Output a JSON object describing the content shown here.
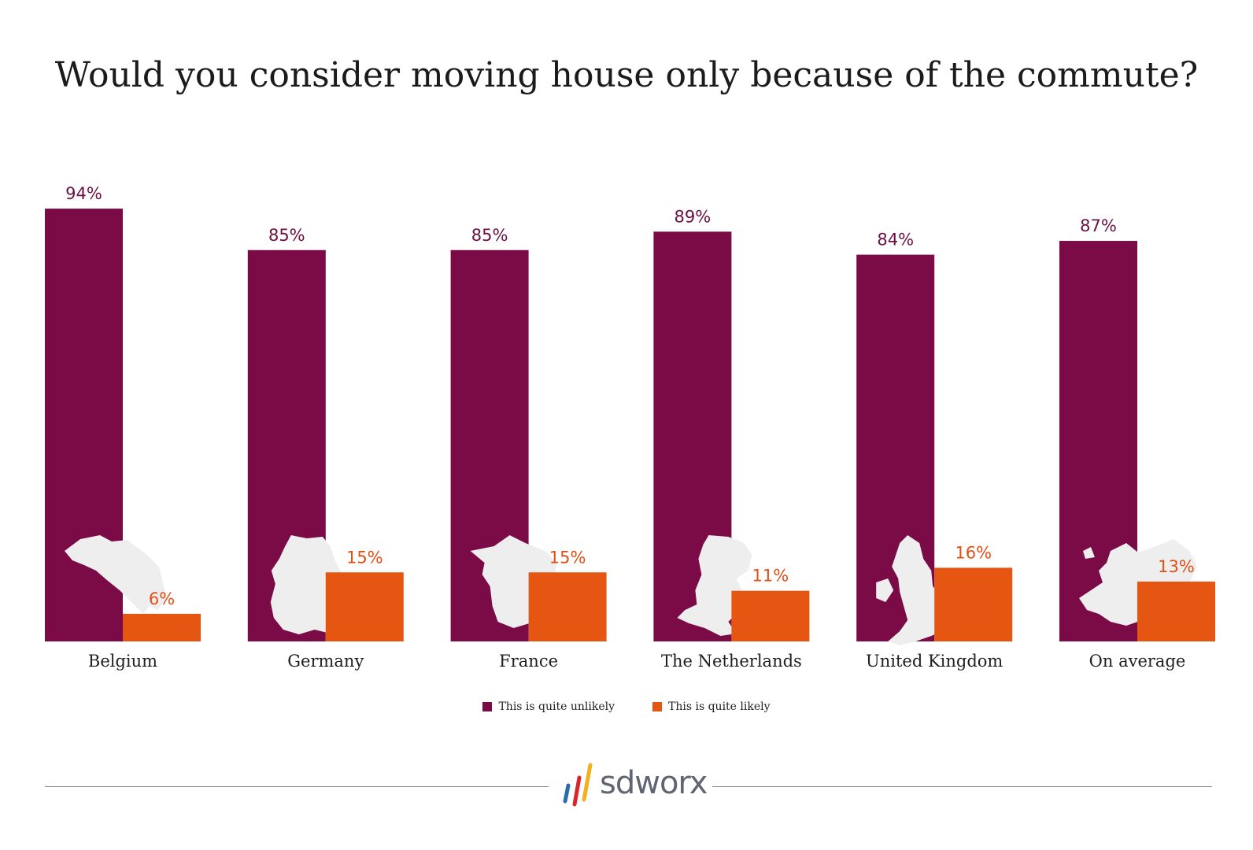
{
  "colors": {
    "unlikely": "#7a0b47",
    "likely": "#e55613",
    "map": "#eeeeee",
    "footer_line": "#8a8a8a",
    "logo_text": "#5f6672"
  },
  "legend": {
    "unlikely_label": "This is quite unlikely",
    "likely_label": "This is quite likely"
  },
  "logo": {
    "text": "sdworx"
  },
  "chart_data": {
    "type": "bar",
    "title": "Would you consider moving house only because of the commute?",
    "categories": [
      "Belgium",
      "Germany",
      "France",
      "The Netherlands",
      "United Kingdom",
      "On average"
    ],
    "series": [
      {
        "name": "This is quite unlikely",
        "values": [
          94,
          85,
          85,
          89,
          84,
          87
        ],
        "labels": [
          "94%",
          "85%",
          "85%",
          "89%",
          "84%",
          "87%"
        ]
      },
      {
        "name": "This is quite likely",
        "values": [
          6,
          15,
          15,
          11,
          16,
          13
        ],
        "labels": [
          "6%",
          "15%",
          "15%",
          "11%",
          "16%",
          "13%"
        ]
      }
    ],
    "map_icons": [
      "belgium-map",
      "germany-map",
      "france-map",
      "netherlands-map",
      "united-kingdom-map",
      "europe-map"
    ],
    "ylim": [
      0,
      100
    ],
    "grid": false,
    "legend_position": "bottom-center"
  }
}
